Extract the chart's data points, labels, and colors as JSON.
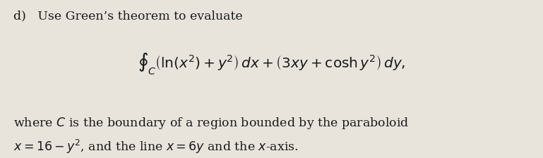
{
  "bg_color": "#e8e4dc",
  "text_color": "#1a1a1a",
  "label_d": "d)",
  "line1": "Use Green’s theorem to evaluate",
  "line3": "where $C$ is the boundary of a region bounded by the paraboloid",
  "line4": "$x = 16 - y^2$, and the line $x = 6y$ and the $x$-axis.",
  "integral_expr": "$\\oint_C \\left(\\ln(x^2) + y^2\\right)\\, dx + \\left(3xy + \\cosh y^2\\right)\\, dy,$",
  "figsize": [
    7.69,
    2.26
  ],
  "dpi": 100
}
